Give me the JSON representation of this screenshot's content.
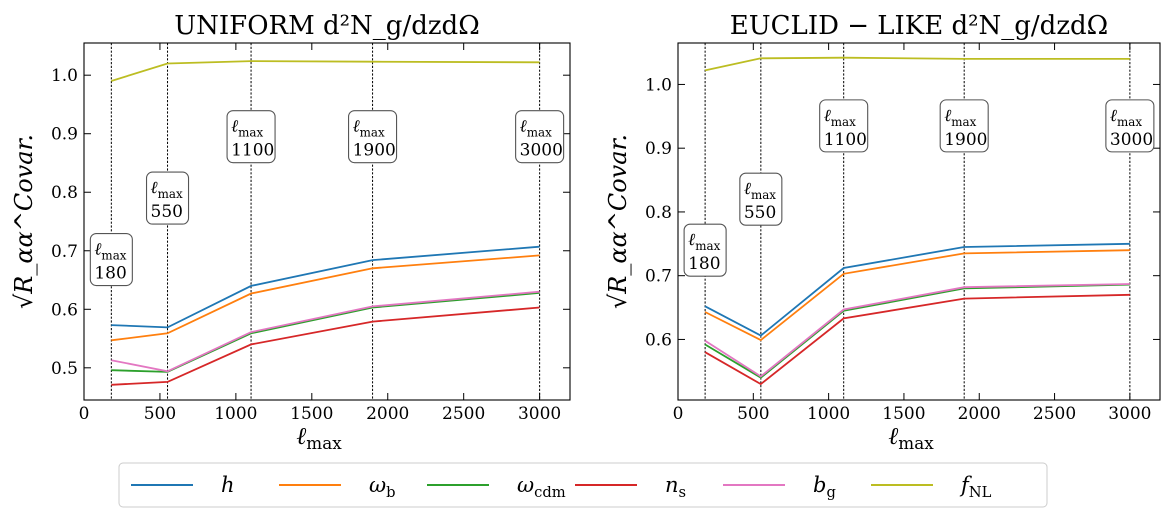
{
  "chart_data": [
    {
      "type": "line",
      "title": "UNIFORM d²N_g/dzdΩ",
      "xlabel": "ℓ_max",
      "ylabel": "√R_αα^Covar.",
      "xlim": [
        0,
        3200
      ],
      "ylim": [
        0.445,
        1.055
      ],
      "xticks": [
        0,
        500,
        1000,
        1500,
        2000,
        2500,
        3000
      ],
      "yticks": [
        0.5,
        0.6,
        0.7,
        0.8,
        0.9,
        1.0
      ],
      "x": [
        180,
        550,
        1100,
        1900,
        3000
      ],
      "series": [
        {
          "name": "h",
          "values": [
            0.573,
            0.569,
            0.64,
            0.684,
            0.707
          ]
        },
        {
          "name": "ω_b",
          "values": [
            0.547,
            0.559,
            0.627,
            0.67,
            0.692
          ]
        },
        {
          "name": "ω_cdm",
          "values": [
            0.496,
            0.493,
            0.559,
            0.603,
            0.628
          ]
        },
        {
          "name": "n_s",
          "values": [
            0.471,
            0.476,
            0.54,
            0.579,
            0.603
          ]
        },
        {
          "name": "b_g",
          "values": [
            0.513,
            0.494,
            0.561,
            0.605,
            0.63
          ]
        },
        {
          "name": "f_NL",
          "values": [
            0.99,
            1.02,
            1.024,
            1.023,
            1.022
          ]
        }
      ],
      "vlines": [
        180,
        550,
        1100,
        1900,
        3000
      ],
      "annotations": [
        {
          "x": 180,
          "y": 0.685,
          "label": "ℓ_max",
          "value": "180"
        },
        {
          "x": 550,
          "y": 0.79,
          "label": "ℓ_max",
          "value": "550"
        },
        {
          "x": 1100,
          "y": 0.895,
          "label": "ℓ_max",
          "value": "1100"
        },
        {
          "x": 1900,
          "y": 0.895,
          "label": "ℓ_max",
          "value": "1900"
        },
        {
          "x": 3000,
          "y": 0.895,
          "label": "ℓ_max",
          "value": "3000"
        }
      ]
    },
    {
      "type": "line",
      "title": "EUCLID − LIKE d²N_g/dzdΩ",
      "xlabel": "ℓ_max",
      "ylabel": "√R_αα^Covar.",
      "xlim": [
        0,
        3200
      ],
      "ylim": [
        0.505,
        1.065
      ],
      "xticks": [
        0,
        500,
        1000,
        1500,
        2000,
        2500,
        3000
      ],
      "yticks": [
        0.6,
        0.7,
        0.8,
        0.9,
        1.0
      ],
      "x": [
        180,
        550,
        1100,
        1900,
        3000
      ],
      "series": [
        {
          "name": "h",
          "values": [
            0.652,
            0.606,
            0.712,
            0.745,
            0.75
          ]
        },
        {
          "name": "ω_b",
          "values": [
            0.643,
            0.599,
            0.703,
            0.735,
            0.74
          ]
        },
        {
          "name": "ω_cdm",
          "values": [
            0.592,
            0.54,
            0.645,
            0.68,
            0.686
          ]
        },
        {
          "name": "n_s",
          "values": [
            0.58,
            0.53,
            0.633,
            0.664,
            0.67
          ]
        },
        {
          "name": "b_g",
          "values": [
            0.598,
            0.542,
            0.647,
            0.682,
            0.687
          ]
        },
        {
          "name": "f_NL",
          "values": [
            1.022,
            1.041,
            1.042,
            1.04,
            1.04
          ]
        }
      ],
      "vlines": [
        180,
        550,
        1100,
        1900,
        3000
      ],
      "annotations": [
        {
          "x": 180,
          "y": 0.74,
          "label": "ℓ_max",
          "value": "180"
        },
        {
          "x": 550,
          "y": 0.82,
          "label": "ℓ_max",
          "value": "550"
        },
        {
          "x": 1100,
          "y": 0.935,
          "label": "ℓ_max",
          "value": "1100"
        },
        {
          "x": 1900,
          "y": 0.935,
          "label": "ℓ_max",
          "value": "1900"
        },
        {
          "x": 3000,
          "y": 0.935,
          "label": "ℓ_max",
          "value": "3000"
        }
      ]
    }
  ],
  "legend": {
    "placement": "bottom-center",
    "items": [
      {
        "name": "h",
        "color": "#1f77b4"
      },
      {
        "name": "ω_b",
        "color": "#ff7f0e"
      },
      {
        "name": "ω_cdm",
        "color": "#2ca02c"
      },
      {
        "name": "n_s",
        "color": "#d62728"
      },
      {
        "name": "b_g",
        "color": "#e377c2"
      },
      {
        "name": "f_NL",
        "color": "#bcbd22"
      }
    ]
  }
}
